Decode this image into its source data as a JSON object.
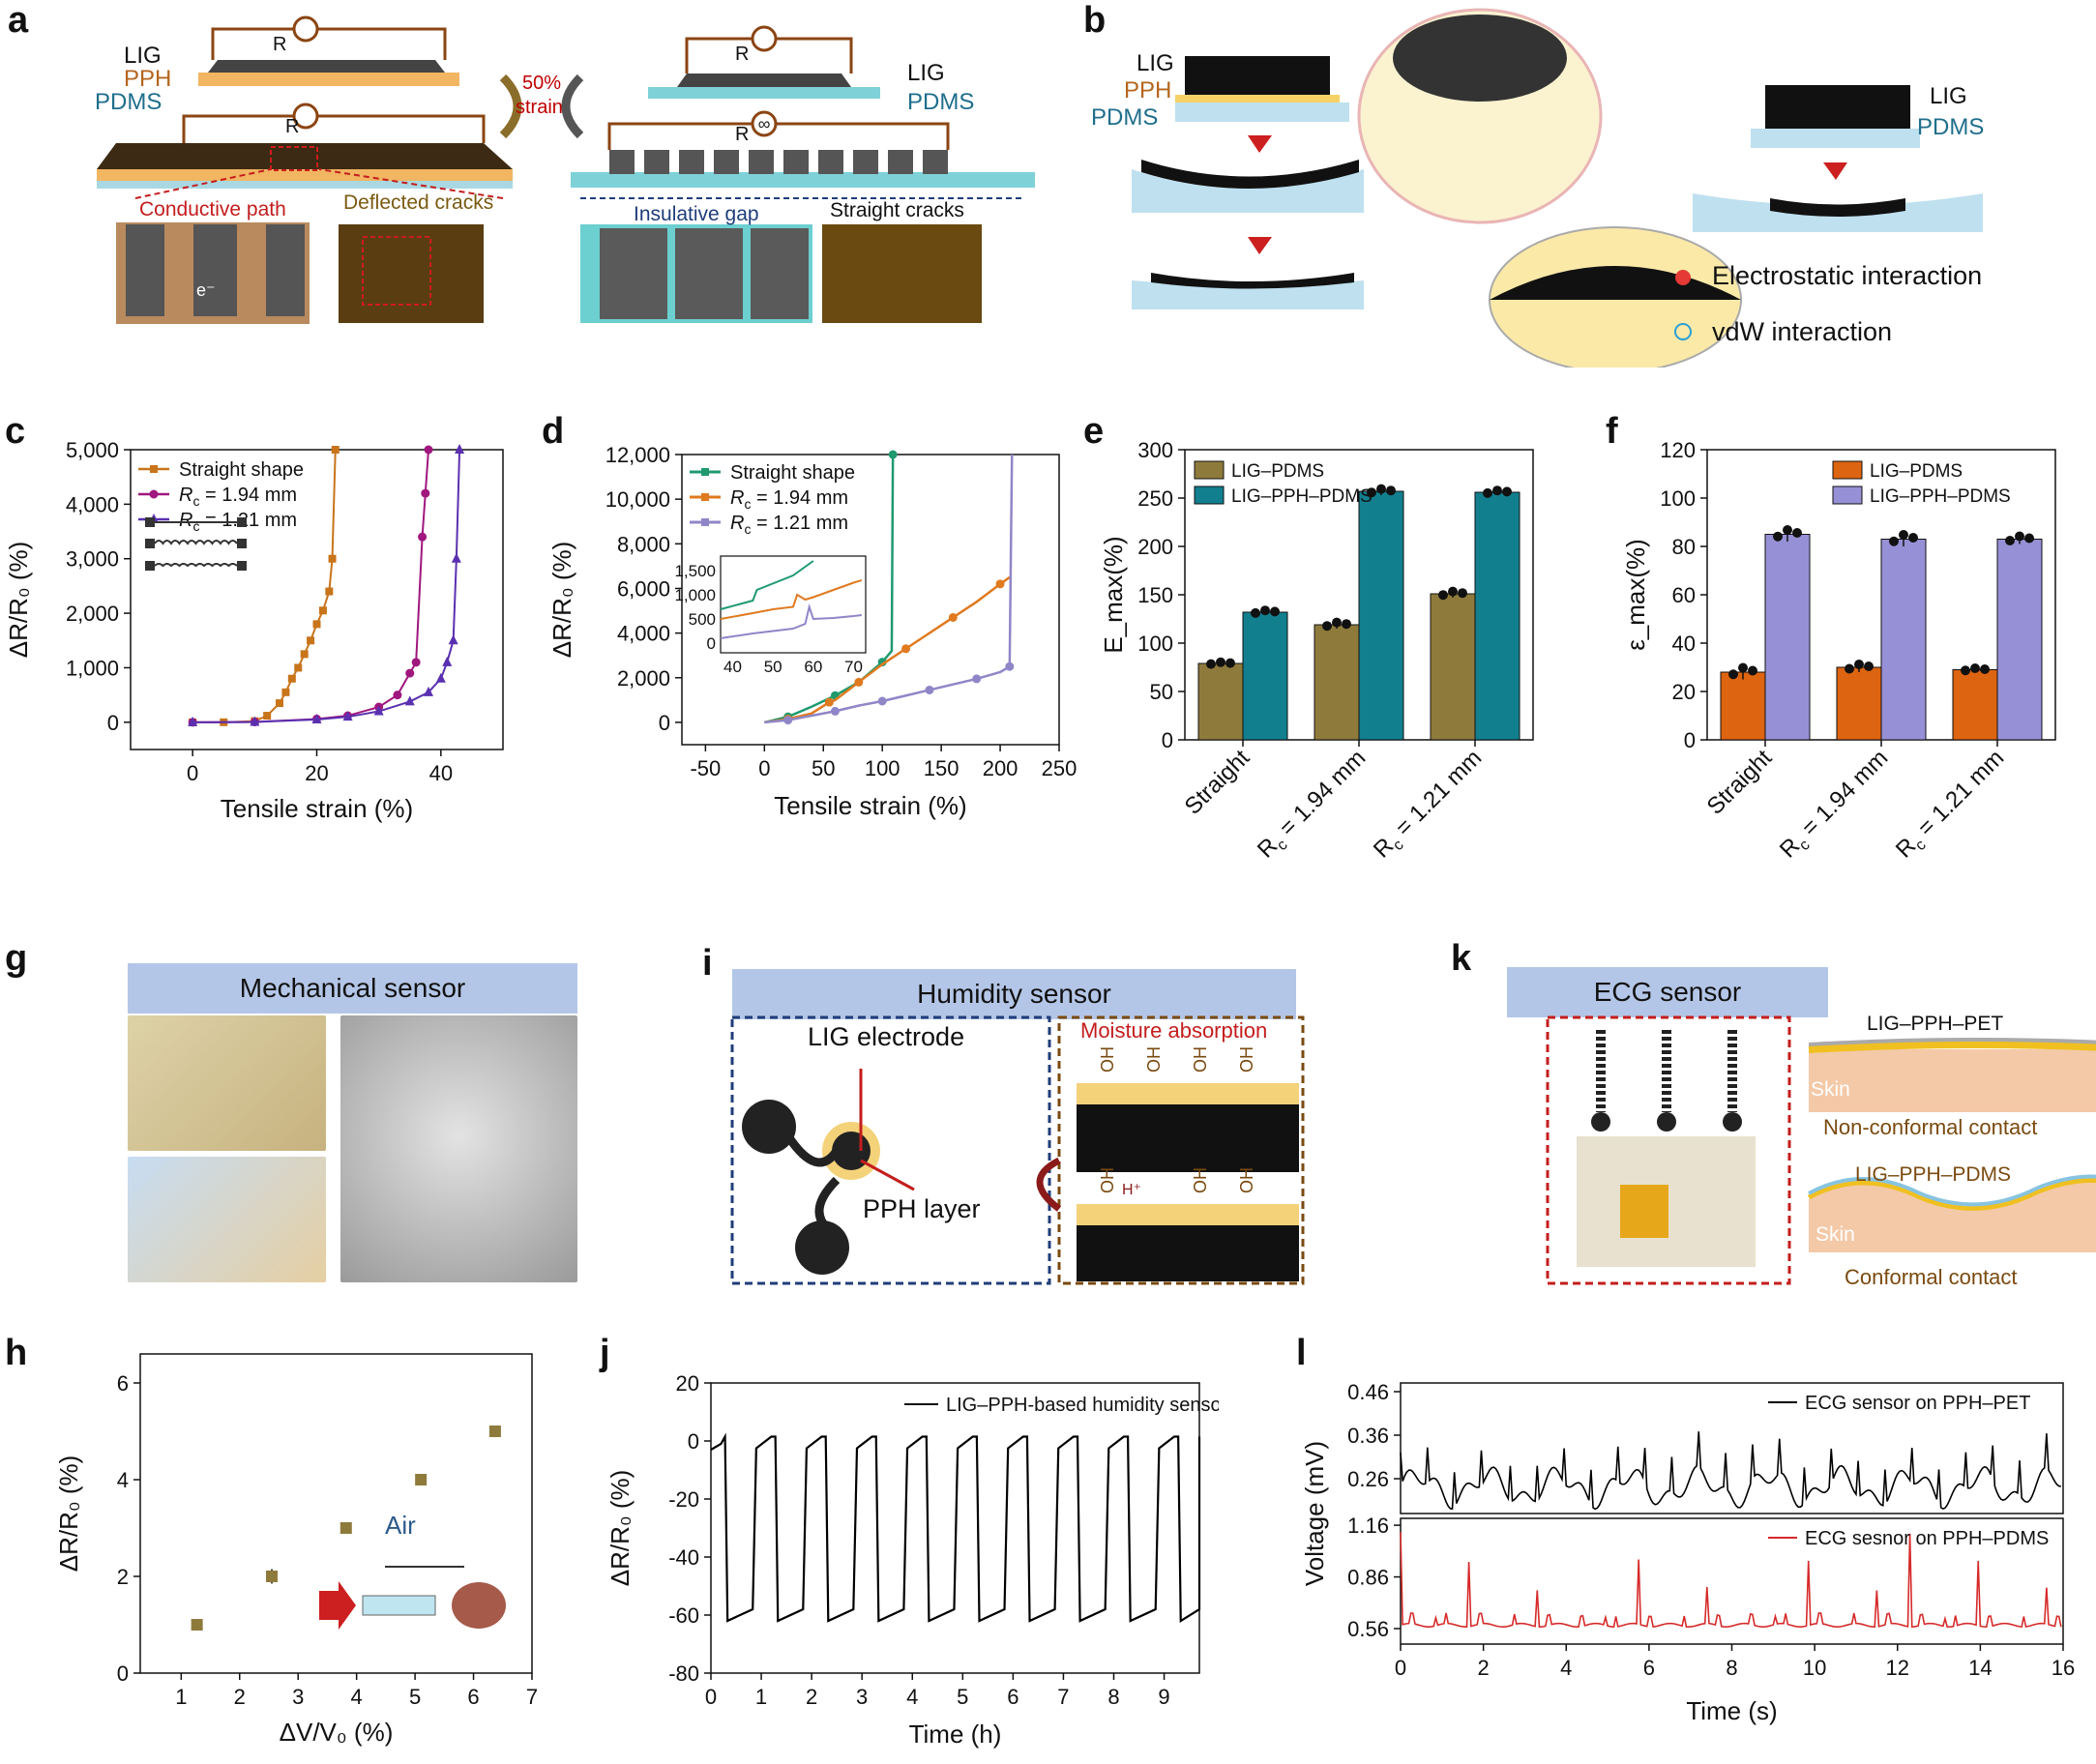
{
  "panels": {
    "a": {
      "label": "a",
      "left_stack": [
        "LIG",
        "PPH",
        "PDMS"
      ],
      "right_stack": [
        "LIG",
        "PDMS"
      ],
      "resistor": "R",
      "strain": [
        "50%",
        "strain"
      ],
      "captions": [
        "Conductive path",
        "Deflected cracks",
        "Insulative gap",
        "Straight cracks"
      ],
      "electron": "e⁻"
    },
    "b": {
      "label": "b",
      "stack_left": [
        "LIG",
        "PPH",
        "PDMS"
      ],
      "stack_right": [
        "LIG",
        "PDMS"
      ],
      "legend_electrostatic": "Electrostatic interaction",
      "legend_vdw": "vdW interaction"
    },
    "c": {
      "label": "c",
      "ylabel": "ΔR/R₀ (%)",
      "xlabel": "Tensile strain (%)"
    },
    "d": {
      "label": "d",
      "ylabel": "ΔR/R₀ (%)",
      "xlabel": "Tensile strain (%)"
    },
    "e": {
      "label": "e",
      "ylabel": "E_max(%)"
    },
    "f": {
      "label": "f",
      "ylabel": "ε_max(%)"
    },
    "g": {
      "label": "g",
      "header": "Mechanical sensor"
    },
    "h": {
      "label": "h",
      "ylabel": "ΔR/R₀ (%)",
      "xlabel": "ΔV/V₀ (%)",
      "inset": "Air"
    },
    "i": {
      "label": "i",
      "header": "Humidity sensor",
      "electrode": "LIG electrode",
      "layer": "PPH layer",
      "moisture": "Moisture absorption",
      "oh": "OH",
      "h": "H⁺"
    },
    "j": {
      "label": "j",
      "ylabel": "ΔR/R₀ (%)",
      "xlabel": "Time (h)"
    },
    "k": {
      "label": "k",
      "header": "ECG sensor",
      "top_stack": "LIG–PPH–PET",
      "top_contact": "Non-conformal contact",
      "bottom_stack": "LIG–PPH–PDMS",
      "bottom_contact": "Conformal contact",
      "skin": "Skin"
    },
    "l": {
      "label": "l",
      "ylabel": "Voltage (mV)",
      "xlabel": "Time (s)"
    }
  },
  "colors": {
    "brown": "#c8741a",
    "magenta": "#a0177e",
    "purple": "#5a30b0",
    "green": "#1f9a6e",
    "orange": "#e07a1f",
    "lav": "#8f86c8",
    "olive": "#8e7b3c",
    "teal": "#127f8f",
    "lig_orange": "#dd6410",
    "lig_lav": "#9691d6",
    "band": "#b4c6e7",
    "red_ecg": "#d62a2a",
    "gold": "#b99a4e"
  },
  "chart_data": [
    {
      "id": "c",
      "type": "line",
      "xlabel": "Tensile strain (%)",
      "ylabel": "ΔR/R₀ (%)",
      "xlim": [
        -10,
        50
      ],
      "ylim": [
        -500,
        5000
      ],
      "xticks": [
        0,
        20,
        40
      ],
      "yticks": [
        0,
        1000,
        2000,
        3000,
        4000,
        5000
      ],
      "ytick_labels": [
        "0",
        "1,000",
        "2,000",
        "3,000",
        "4,000",
        "5,000"
      ],
      "legend": "top-left",
      "series": [
        {
          "name": "Straight shape",
          "color": "#c8741a",
          "marker": "square",
          "x": [
            0,
            5,
            10,
            12,
            14,
            15,
            16,
            17,
            18,
            19,
            20,
            21,
            22,
            22.5,
            23
          ],
          "y": [
            0,
            0,
            20,
            120,
            350,
            550,
            800,
            1000,
            1250,
            1500,
            1800,
            2050,
            2400,
            3000,
            5000
          ]
        },
        {
          "name": "R_c = 1.94 mm",
          "color": "#a0177e",
          "marker": "circle",
          "x": [
            0,
            10,
            20,
            25,
            30,
            33,
            35,
            36,
            37,
            37.5,
            38
          ],
          "y": [
            0,
            5,
            60,
            120,
            280,
            500,
            900,
            1100,
            3400,
            4200,
            5000
          ]
        },
        {
          "name": "R_c = 1.21 mm",
          "color": "#5a30b0",
          "marker": "triangle",
          "x": [
            0,
            10,
            20,
            25,
            30,
            35,
            38,
            40,
            41,
            42,
            42.5,
            43
          ],
          "y": [
            0,
            5,
            50,
            100,
            200,
            380,
            550,
            800,
            1100,
            1500,
            3000,
            5000
          ]
        }
      ]
    },
    {
      "id": "d",
      "type": "line",
      "xlabel": "Tensile strain (%)",
      "ylabel": "ΔR/R₀ (%)",
      "xlim": [
        -70,
        250
      ],
      "ylim": [
        -1000,
        12000
      ],
      "xticks": [
        -50,
        0,
        50,
        100,
        150,
        200,
        250
      ],
      "yticks": [
        0,
        2000,
        4000,
        6000,
        8000,
        10000,
        12000
      ],
      "ytick_labels": [
        "0",
        "2,000",
        "4,000",
        "6,000",
        "8,000",
        "10,000",
        "12,000"
      ],
      "legend": "top-left",
      "series": [
        {
          "name": "Straight shape",
          "color": "#1f9a6e",
          "x": [
            0,
            20,
            40,
            60,
            80,
            100,
            108,
            109
          ],
          "y": [
            0,
            250,
            700,
            1200,
            1800,
            2700,
            3200,
            12000
          ]
        },
        {
          "name": "R_c = 1.94 mm",
          "color": "#e07a1f",
          "x": [
            0,
            20,
            40,
            55,
            60,
            80,
            100,
            120,
            140,
            160,
            180,
            200,
            208
          ],
          "y": [
            0,
            150,
            400,
            900,
            1000,
            1800,
            2600,
            3300,
            4000,
            4700,
            5400,
            6200,
            6500
          ]
        },
        {
          "name": "R_c = 1.21 mm",
          "color": "#8f86c8",
          "x": [
            0,
            20,
            40,
            60,
            80,
            100,
            120,
            140,
            160,
            180,
            200,
            208,
            210
          ],
          "y": [
            0,
            100,
            300,
            500,
            750,
            950,
            1200,
            1450,
            1700,
            1950,
            2250,
            2500,
            12000
          ]
        }
      ],
      "inset": {
        "xlim": [
          37,
          73
        ],
        "ylim": [
          -200,
          1800
        ],
        "xticks": [
          40,
          50,
          60,
          70
        ],
        "yticks": [
          0,
          500,
          1000,
          1500
        ],
        "ytick_labels": [
          "0",
          "500",
          "1,000",
          "1,500"
        ],
        "series": [
          {
            "color": "#1f9a6e",
            "x": [
              37,
              45,
              46,
              55,
              60
            ],
            "y": [
              700,
              880,
              1100,
              1400,
              1700
            ]
          },
          {
            "color": "#e07a1f",
            "x": [
              37,
              45,
              50,
              55,
              56,
              58,
              60,
              65,
              70,
              72
            ],
            "y": [
              500,
              620,
              700,
              750,
              1000,
              900,
              950,
              1100,
              1250,
              1300
            ]
          },
          {
            "color": "#8f86c8",
            "x": [
              37,
              45,
              55,
              58,
              59,
              60,
              65,
              70,
              72
            ],
            "y": [
              100,
              200,
              300,
              400,
              750,
              500,
              520,
              560,
              580
            ]
          }
        ]
      }
    },
    {
      "id": "e",
      "type": "bar",
      "ylabel": "E_max(%)",
      "categories": [
        "Straight",
        "R_c = 1.94 mm",
        "R_c = 1.21 mm"
      ],
      "ylim": [
        0,
        300
      ],
      "yticks": [
        0,
        50,
        100,
        150,
        200,
        250,
        300
      ],
      "legend": "top-left",
      "series": [
        {
          "name": "LIG–PDMS",
          "color": "#8e7b3c",
          "values": [
            79,
            119,
            151
          ],
          "err": [
            2,
            4,
            4
          ]
        },
        {
          "name": "LIG–PPH–PDMS",
          "color": "#127f8f",
          "values": [
            132,
            257,
            256
          ],
          "err": [
            3,
            4,
            3
          ]
        }
      ]
    },
    {
      "id": "f",
      "type": "bar",
      "ylabel": "ε_max(%)",
      "categories": [
        "Straight",
        "R_c = 1.94 mm",
        "R_c = 1.21 mm"
      ],
      "ylim": [
        0,
        120
      ],
      "yticks": [
        0,
        20,
        40,
        60,
        80,
        100,
        120
      ],
      "legend": "top-right",
      "series": [
        {
          "name": "LIG–PDMS",
          "color": "#dd6410",
          "values": [
            28,
            30,
            29
          ],
          "err": [
            3,
            2,
            1
          ]
        },
        {
          "name": "LIG–PPH–PDMS",
          "color": "#9691d6",
          "values": [
            85,
            83,
            83
          ],
          "err": [
            3,
            3,
            2
          ]
        }
      ]
    },
    {
      "id": "h",
      "type": "scatter",
      "xlabel": "ΔV/V₀ (%)",
      "ylabel": "ΔR/R₀ (%)",
      "xlim": [
        0.3,
        7
      ],
      "ylim": [
        0,
        6.6
      ],
      "xticks": [
        1,
        2,
        3,
        4,
        5,
        6,
        7
      ],
      "yticks": [
        0,
        2,
        4,
        6
      ],
      "series": [
        {
          "color": "#8e7b3c",
          "x": [
            1.27,
            2.55,
            3.82,
            5.1,
            6.37
          ],
          "y": [
            1.0,
            2.0,
            3.0,
            4.0,
            5.0
          ],
          "err": [
            0.08,
            0.15,
            0.12,
            0.1,
            0.1
          ]
        }
      ]
    },
    {
      "id": "j",
      "type": "line",
      "xlabel": "Time (h)",
      "ylabel": "ΔR/R₀ (%)",
      "xlim": [
        0,
        9.7
      ],
      "ylim": [
        -80,
        20
      ],
      "xticks": [
        0,
        1,
        2,
        3,
        4,
        5,
        6,
        7,
        8,
        9
      ],
      "yticks": [
        -80,
        -60,
        -40,
        -20,
        0,
        20
      ],
      "legend": "top-right",
      "series": [
        {
          "name": "LIG–PPH-based humidity sensor",
          "color": "#000000",
          "cycles": 10,
          "period": 1.0,
          "high": 1.5,
          "low": -62
        }
      ]
    },
    {
      "id": "l",
      "type": "line",
      "xlabel": "Time (s)",
      "ylabel": "Voltage (mV)",
      "xlim": [
        0,
        16
      ],
      "xticks": [
        0,
        2,
        4,
        6,
        8,
        10,
        12,
        14,
        16
      ],
      "panels": [
        {
          "name": "ECG sensor on PPH–PET",
          "color": "#000000",
          "yticks": [
            0.26,
            0.36,
            0.46
          ],
          "ylim": [
            0.18,
            0.48
          ],
          "baseline": 0.24
        },
        {
          "name": "ECG sesnor on PPH–PDMS",
          "color": "#d62a2a",
          "yticks": [
            0.56,
            0.86,
            1.16
          ],
          "ylim": [
            0.47,
            1.2
          ],
          "baseline": 0.58,
          "peak": 1.12,
          "beat_period": 0.82
        }
      ]
    }
  ]
}
